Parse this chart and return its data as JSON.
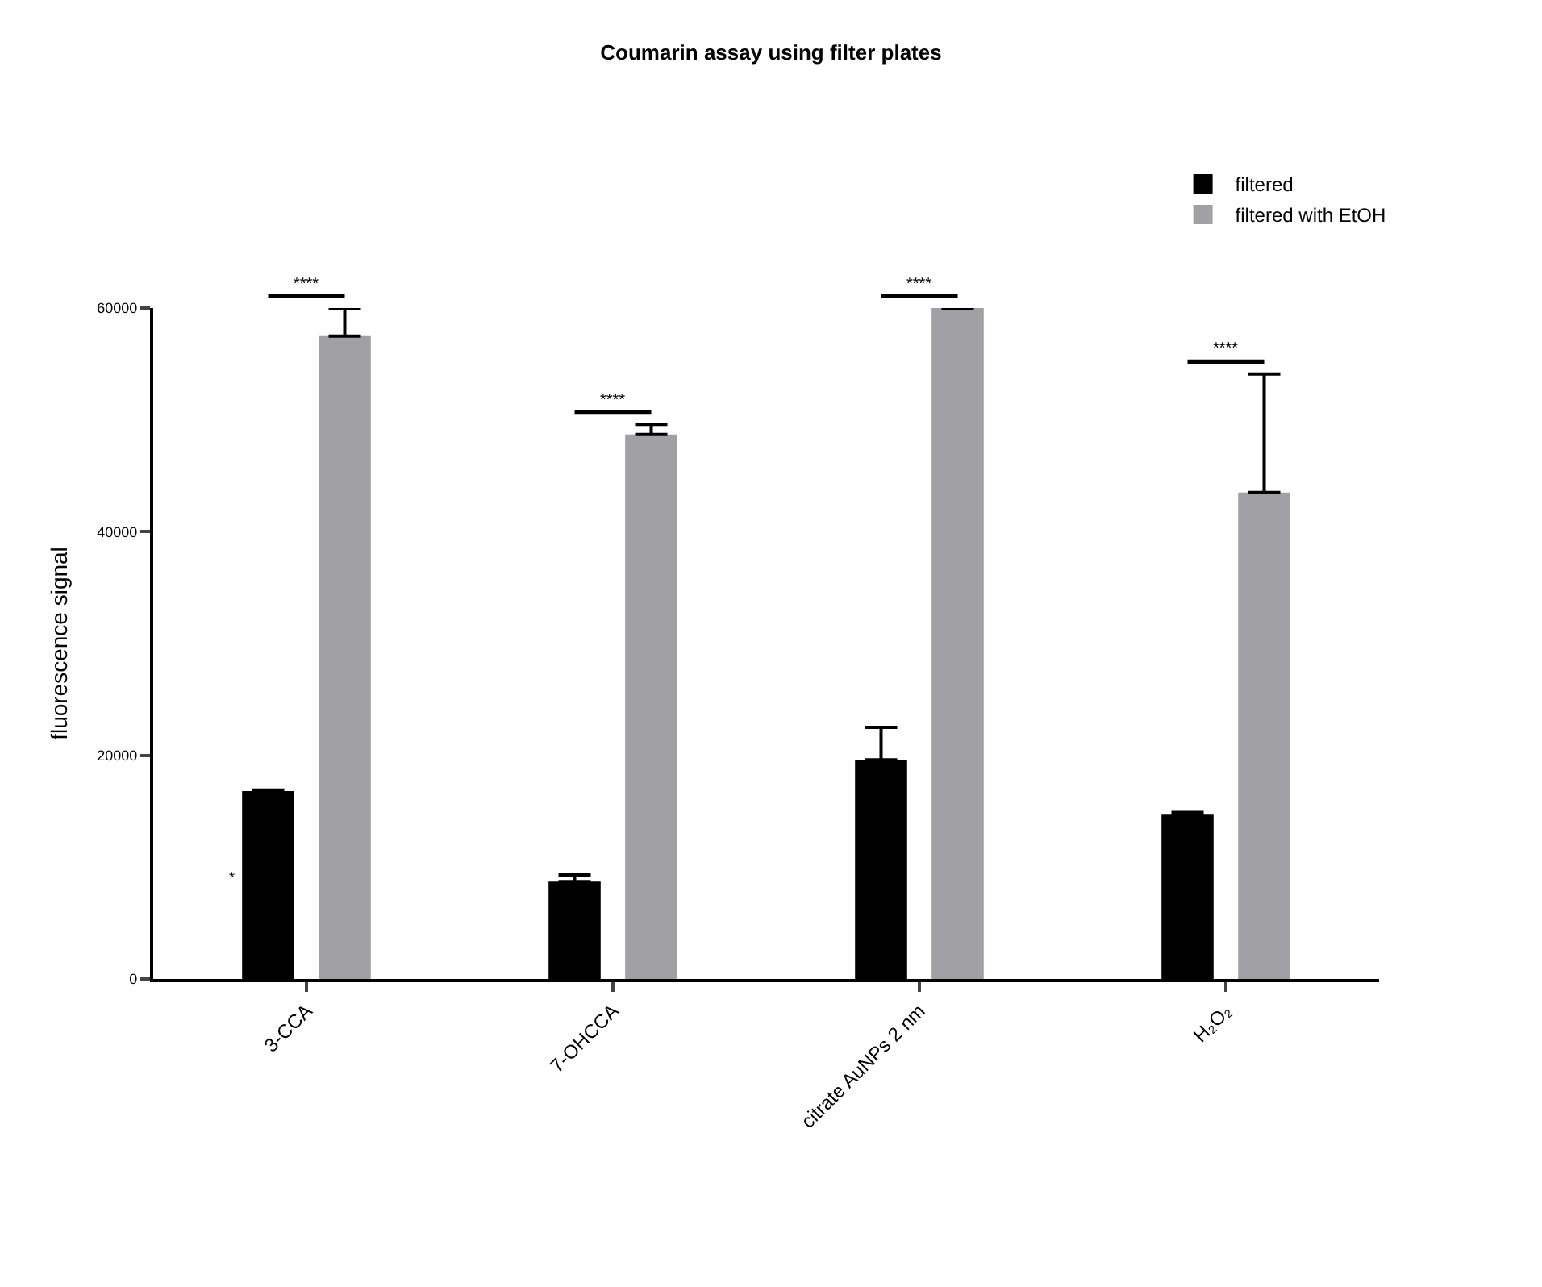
{
  "chart_data": {
    "type": "bar",
    "title": "Coumarin assay using filter plates",
    "ylabel": "fluorescence signal",
    "categories": [
      "3-CCA",
      "7-OHCCA",
      "citrate AuNPs 2 nm",
      "H₂O₂"
    ],
    "series": [
      {
        "name": "filtered",
        "color": "#000000",
        "values": [
          16800,
          8700,
          19600,
          14700
        ],
        "errors": [
          [
            16800,
            16900
          ],
          [
            8700,
            9300
          ],
          [
            19600,
            22500
          ],
          [
            14700,
            14900
          ]
        ]
      },
      {
        "name": "filtered with EtOH",
        "color": "#a1a0a5",
        "values": [
          57500,
          48700,
          60000,
          43500
        ],
        "errors": [
          [
            57500,
            60000
          ],
          [
            48700,
            49600
          ],
          null,
          [
            43500,
            54100
          ]
        ]
      }
    ],
    "ylim": [
      0,
      60000
    ],
    "yticks": [
      0,
      20000,
      40000,
      60000
    ],
    "legend": "top right",
    "annotations": [
      "****",
      "****",
      "****",
      "****",
      "*"
    ]
  }
}
